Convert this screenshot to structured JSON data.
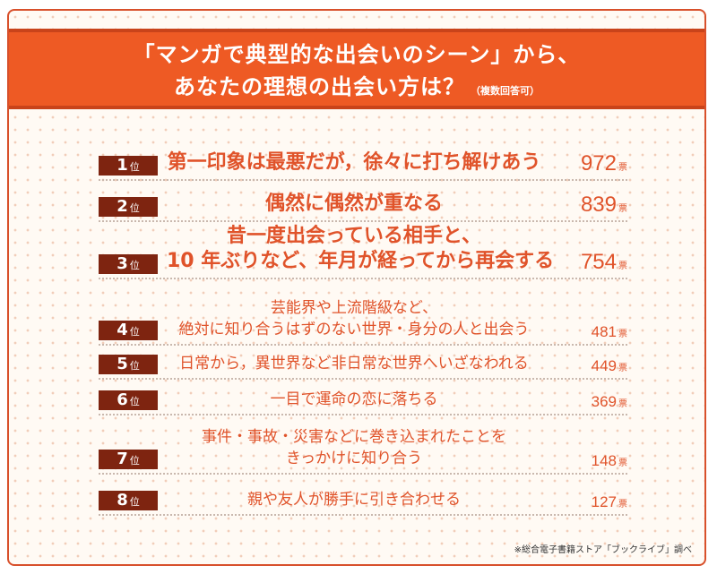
{
  "header": {
    "line1": "「マンガで典型的な出会いのシーン」から、",
    "line2": "あなたの理想の出会い方は？",
    "note": "（複数回答可）"
  },
  "rank_unit": "位",
  "count_unit": "票",
  "chart_data": {
    "type": "table",
    "title": "「マンガで典型的な出会いのシーン」から、あなたの理想の出会い方は？（複数回答可）",
    "rows": [
      {
        "rank": "1",
        "label_lines": [
          "第一印象は最悪だが，徐々に打ち解けあう"
        ],
        "value": 972
      },
      {
        "rank": "2",
        "label_lines": [
          "偶然に偶然が重なる"
        ],
        "value": 839
      },
      {
        "rank": "3",
        "label_lines": [
          "昔一度出会っている相手と、",
          "10 年ぶりなど、年月が経ってから再会する"
        ],
        "value": 754
      },
      {
        "rank": "4",
        "label_lines": [
          "芸能界や上流階級など、",
          "絶対に知り合うはずのない世界・身分の人と出会う"
        ],
        "value": 481
      },
      {
        "rank": "5",
        "label_lines": [
          "日常から，異世界など非日常な世界へいざなわれる"
        ],
        "value": 449
      },
      {
        "rank": "6",
        "label_lines": [
          "一目で運命の恋に落ちる"
        ],
        "value": 369
      },
      {
        "rank": "7",
        "label_lines": [
          "事件・事故・災害などに巻き込まれたことを",
          "きっかけに知り合う"
        ],
        "value": 148
      },
      {
        "rank": "8",
        "label_lines": [
          "親や友人が勝手に引き合わせる"
        ],
        "value": 127
      }
    ]
  },
  "footer": {
    "source": "※総合電子書籍ストア「ブックライブ」調べ"
  },
  "colors": {
    "header_bg": "#ee5a24",
    "badge_bg": "#7e2410",
    "text_accent": "#e0532a"
  }
}
